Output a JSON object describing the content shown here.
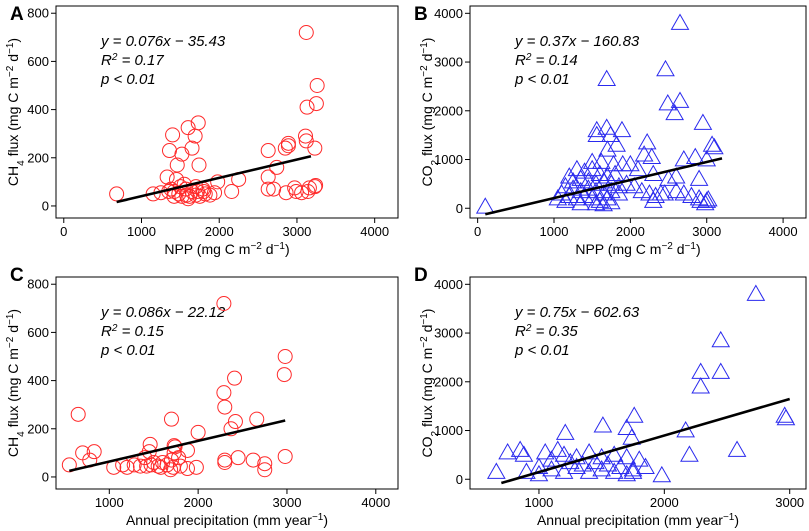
{
  "chart_data": [
    {
      "panel": "A",
      "type": "scatter",
      "xlabel_main": "NPP (mg C m",
      "xlabel_exp1": "−2",
      "xlabel_mid": " d",
      "xlabel_exp2": "−1",
      "xlabel_end": ")",
      "ylabel_main": "CH",
      "ylabel_sub": "4",
      "ylabel_mid": " flux (mg C m",
      "ylabel_exp1": "−2",
      "ylabel_mid2": " d",
      "ylabel_exp2": "−1",
      "ylabel_end": ")",
      "xlim": [
        -100,
        4300
      ],
      "ylim": [
        -50,
        830
      ],
      "xticks": [
        0,
        1000,
        2000,
        3000,
        4000
      ],
      "yticks": [
        0,
        200,
        400,
        600,
        800
      ],
      "eq": "y = 0.076x − 35.43",
      "r2_label": "R",
      "r2_exp": "2",
      "r2_value": " = 0.17",
      "p": "p < 0.01",
      "fit": {
        "x": [
          680,
          3180
        ],
        "y": [
          16.25,
          206.25
        ]
      },
      "marker": "circle",
      "color": "#ff2a2a",
      "points": [
        [
          3120,
          720
        ],
        [
          3260,
          500
        ],
        [
          3250,
          425
        ],
        [
          1730,
          345
        ],
        [
          1600,
          325
        ],
        [
          1400,
          295
        ],
        [
          1690,
          290
        ],
        [
          3130,
          410
        ],
        [
          3230,
          240
        ],
        [
          3110,
          290
        ],
        [
          3120,
          270
        ],
        [
          2850,
          240
        ],
        [
          2890,
          250
        ],
        [
          2630,
          230
        ],
        [
          1360,
          230
        ],
        [
          1520,
          215
        ],
        [
          1650,
          240
        ],
        [
          1460,
          170
        ],
        [
          1740,
          170
        ],
        [
          2890,
          260
        ],
        [
          2740,
          160
        ],
        [
          2630,
          120
        ],
        [
          2630,
          70
        ],
        [
          3240,
          85
        ],
        [
          2990,
          60
        ],
        [
          3060,
          55
        ],
        [
          2970,
          75
        ],
        [
          2700,
          70
        ],
        [
          2860,
          55
        ],
        [
          3160,
          75
        ],
        [
          3140,
          60
        ],
        [
          3230,
          80
        ],
        [
          2250,
          110
        ],
        [
          2160,
          60
        ],
        [
          1330,
          120
        ],
        [
          1450,
          110
        ],
        [
          1500,
          80
        ],
        [
          1570,
          70
        ],
        [
          1650,
          60
        ],
        [
          1720,
          60
        ],
        [
          1790,
          70
        ],
        [
          1980,
          100
        ],
        [
          680,
          50
        ],
        [
          1150,
          50
        ],
        [
          1250,
          55
        ],
        [
          1350,
          60
        ],
        [
          1420,
          60
        ],
        [
          1480,
          50
        ],
        [
          1520,
          40
        ],
        [
          1580,
          45
        ],
        [
          1620,
          40
        ],
        [
          1700,
          45
        ],
        [
          1750,
          40
        ],
        [
          1820,
          50
        ],
        [
          1880,
          45
        ],
        [
          1940,
          55
        ],
        [
          1420,
          40
        ],
        [
          1600,
          30
        ],
        [
          1380,
          70
        ],
        [
          1550,
          90
        ],
        [
          1700,
          80
        ],
        [
          1800,
          60
        ]
      ]
    },
    {
      "panel": "B",
      "type": "scatter",
      "xlabel_main": "NPP (mg C m",
      "xlabel_exp1": "−2",
      "xlabel_mid": " d",
      "xlabel_exp2": "−1",
      "xlabel_end": ")",
      "ylabel_main": "CO",
      "ylabel_sub": "2",
      "ylabel_mid": " flux (mg C m",
      "ylabel_exp1": "−2",
      "ylabel_mid2": " d",
      "ylabel_exp2": "−1",
      "ylabel_end": ")",
      "xlim": [
        -100,
        4300
      ],
      "ylim": [
        -200,
        4150
      ],
      "xticks": [
        0,
        1000,
        2000,
        3000,
        4000
      ],
      "yticks": [
        0,
        1000,
        2000,
        3000,
        4000
      ],
      "eq": "y = 0.37x − 160.83",
      "r2_label": "R",
      "r2_exp": "2",
      "r2_value": " = 0.14",
      "p": "p < 0.01",
      "fit": {
        "x": [
          100,
          3200
        ],
        "y": [
          -123.8,
          1023.2
        ]
      },
      "marker": "triangle",
      "color": "#2a2aee",
      "points": [
        [
          2650,
          3800
        ],
        [
          2460,
          2850
        ],
        [
          1690,
          2650
        ],
        [
          2650,
          2200
        ],
        [
          2490,
          2150
        ],
        [
          2580,
          1950
        ],
        [
          2950,
          1750
        ],
        [
          3070,
          1300
        ],
        [
          3100,
          1250
        ],
        [
          1690,
          1650
        ],
        [
          1560,
          1600
        ],
        [
          1740,
          1500
        ],
        [
          1890,
          1600
        ],
        [
          1560,
          1500
        ],
        [
          2220,
          1350
        ],
        [
          1820,
          1300
        ],
        [
          1700,
          1200
        ],
        [
          2180,
          1100
        ],
        [
          2280,
          1050
        ],
        [
          2700,
          1000
        ],
        [
          2850,
          1050
        ],
        [
          3000,
          1000
        ],
        [
          1500,
          950
        ],
        [
          1620,
          950
        ],
        [
          1780,
          900
        ],
        [
          1900,
          900
        ],
        [
          2000,
          900
        ],
        [
          1300,
          800
        ],
        [
          1400,
          750
        ],
        [
          1500,
          800
        ],
        [
          1600,
          700
        ],
        [
          1700,
          650
        ],
        [
          1800,
          700
        ],
        [
          2100,
          800
        ],
        [
          2300,
          700
        ],
        [
          2500,
          600
        ],
        [
          2600,
          650
        ],
        [
          2900,
          600
        ],
        [
          1200,
          650
        ],
        [
          1250,
          550
        ],
        [
          1350,
          600
        ],
        [
          1450,
          550
        ],
        [
          1550,
          500
        ],
        [
          1650,
          550
        ],
        [
          1750,
          500
        ],
        [
          1850,
          450
        ],
        [
          1950,
          500
        ],
        [
          2050,
          450
        ],
        [
          1150,
          450
        ],
        [
          1250,
          400
        ],
        [
          1350,
          350
        ],
        [
          1450,
          400
        ],
        [
          1550,
          350
        ],
        [
          1650,
          300
        ],
        [
          1750,
          350
        ],
        [
          1850,
          300
        ],
        [
          2150,
          350
        ],
        [
          2400,
          300
        ],
        [
          2600,
          350
        ],
        [
          2700,
          300
        ],
        [
          1100,
          300
        ],
        [
          1200,
          250
        ],
        [
          1300,
          200
        ],
        [
          1400,
          250
        ],
        [
          1500,
          200
        ],
        [
          1600,
          150
        ],
        [
          1700,
          200
        ],
        [
          2250,
          300
        ],
        [
          2330,
          250
        ],
        [
          2450,
          300
        ],
        [
          2800,
          250
        ],
        [
          2900,
          200
        ],
        [
          3000,
          150
        ],
        [
          1050,
          200
        ],
        [
          1150,
          150
        ],
        [
          1350,
          100
        ],
        [
          1550,
          100
        ],
        [
          1650,
          80
        ],
        [
          1750,
          120
        ],
        [
          2300,
          150
        ],
        [
          2920,
          150
        ],
        [
          2980,
          100
        ],
        [
          3020,
          180
        ],
        [
          100,
          30
        ]
      ]
    },
    {
      "panel": "C",
      "type": "scatter",
      "xlabel_main": "Annual precipitation (mm year",
      "xlabel_exp1": "−1",
      "xlabel_end": ")",
      "ylabel_main": "CH",
      "ylabel_sub": "4",
      "ylabel_mid": " flux (mg C m",
      "ylabel_exp1": "−2",
      "ylabel_mid2": " d",
      "ylabel_exp2": "−1",
      "ylabel_end": ")",
      "xlim": [
        400,
        4250
      ],
      "ylim": [
        -50,
        830
      ],
      "xticks": [
        1000,
        2000,
        3000,
        4000
      ],
      "yticks": [
        0,
        200,
        400,
        600,
        800
      ],
      "eq": "y = 0.086x − 22.12",
      "r2_label": "R",
      "r2_exp": "2",
      "r2_value": " = 0.15",
      "p": "p < 0.01",
      "fit": {
        "x": [
          550,
          2980
        ],
        "y": [
          25.18,
          234.16
        ]
      },
      "marker": "circle",
      "color": "#ff2a2a",
      "points": [
        [
          2290,
          720
        ],
        [
          2980,
          500
        ],
        [
          2970,
          425
        ],
        [
          2410,
          410
        ],
        [
          2290,
          350
        ],
        [
          2300,
          290
        ],
        [
          2660,
          240
        ],
        [
          2420,
          230
        ],
        [
          2370,
          200
        ],
        [
          650,
          260
        ],
        [
          1700,
          240
        ],
        [
          2000,
          185
        ],
        [
          1460,
          135
        ],
        [
          1450,
          105
        ],
        [
          1730,
          130
        ],
        [
          1740,
          125
        ],
        [
          1730,
          100
        ],
        [
          1880,
          110
        ],
        [
          2300,
          70
        ],
        [
          2450,
          80
        ],
        [
          2620,
          70
        ],
        [
          2980,
          85
        ],
        [
          2750,
          55
        ],
        [
          700,
          100
        ],
        [
          830,
          105
        ],
        [
          1050,
          40
        ],
        [
          1150,
          50
        ],
        [
          1200,
          40
        ],
        [
          1280,
          50
        ],
        [
          1350,
          45
        ],
        [
          1420,
          45
        ],
        [
          1500,
          60
        ],
        [
          1550,
          45
        ],
        [
          1580,
          40
        ],
        [
          1650,
          50
        ],
        [
          1700,
          70
        ],
        [
          1720,
          40
        ],
        [
          1780,
          80
        ],
        [
          1800,
          45
        ],
        [
          1880,
          35
        ],
        [
          1980,
          40
        ],
        [
          2300,
          60
        ],
        [
          2750,
          30
        ],
        [
          550,
          50
        ],
        [
          780,
          70
        ],
        [
          1400,
          80
        ],
        [
          1470,
          50
        ],
        [
          1600,
          60
        ],
        [
          1690,
          30
        ]
      ]
    },
    {
      "panel": "D",
      "type": "scatter",
      "xlabel_main": "Annual precipitation (mm year",
      "xlabel_exp1": "−1",
      "xlabel_end": ")",
      "ylabel_main": "CO",
      "ylabel_sub": "2",
      "ylabel_mid": " flux (mg C m",
      "ylabel_exp1": "−2",
      "ylabel_mid2": " d",
      "ylabel_exp2": "−1",
      "ylabel_end": ")",
      "xlim": [
        450,
        3130
      ],
      "ylim": [
        -200,
        4150
      ],
      "xticks": [
        1000,
        2000,
        3000
      ],
      "yticks": [
        0,
        1000,
        2000,
        3000,
        4000
      ],
      "eq": "y = 0.75x − 602.63",
      "r2_label": "R",
      "r2_exp": "2",
      "r2_value": " = 0.35",
      "p": "p < 0.01",
      "fit": {
        "x": [
          700,
          3000
        ],
        "y": [
          -77.63,
          1647.37
        ]
      },
      "marker": "triangle",
      "color": "#2a2aee",
      "points": [
        [
          2730,
          3800
        ],
        [
          2450,
          2850
        ],
        [
          2290,
          2200
        ],
        [
          2450,
          2200
        ],
        [
          2290,
          1900
        ],
        [
          2960,
          1300
        ],
        [
          2970,
          1250
        ],
        [
          1760,
          1300
        ],
        [
          1510,
          1100
        ],
        [
          1700,
          1050
        ],
        [
          1740,
          850
        ],
        [
          1210,
          950
        ],
        [
          2170,
          1000
        ],
        [
          750,
          550
        ],
        [
          850,
          600
        ],
        [
          880,
          500
        ],
        [
          1050,
          550
        ],
        [
          1150,
          600
        ],
        [
          1200,
          500
        ],
        [
          1300,
          450
        ],
        [
          1400,
          550
        ],
        [
          1500,
          450
        ],
        [
          1600,
          500
        ],
        [
          1700,
          450
        ],
        [
          1800,
          400
        ],
        [
          2200,
          500
        ],
        [
          1100,
          400
        ],
        [
          1250,
          350
        ],
        [
          1350,
          300
        ],
        [
          1450,
          350
        ],
        [
          1550,
          300
        ],
        [
          1650,
          250
        ],
        [
          1750,
          200
        ],
        [
          1850,
          250
        ],
        [
          1000,
          250
        ],
        [
          1100,
          200
        ],
        [
          1200,
          150
        ],
        [
          1300,
          250
        ],
        [
          1400,
          150
        ],
        [
          1500,
          200
        ],
        [
          1600,
          150
        ],
        [
          1700,
          100
        ],
        [
          1750,
          150
        ],
        [
          1980,
          80
        ],
        [
          2580,
          600
        ],
        [
          660,
          150
        ],
        [
          900,
          150
        ],
        [
          1000,
          100
        ]
      ]
    }
  ]
}
